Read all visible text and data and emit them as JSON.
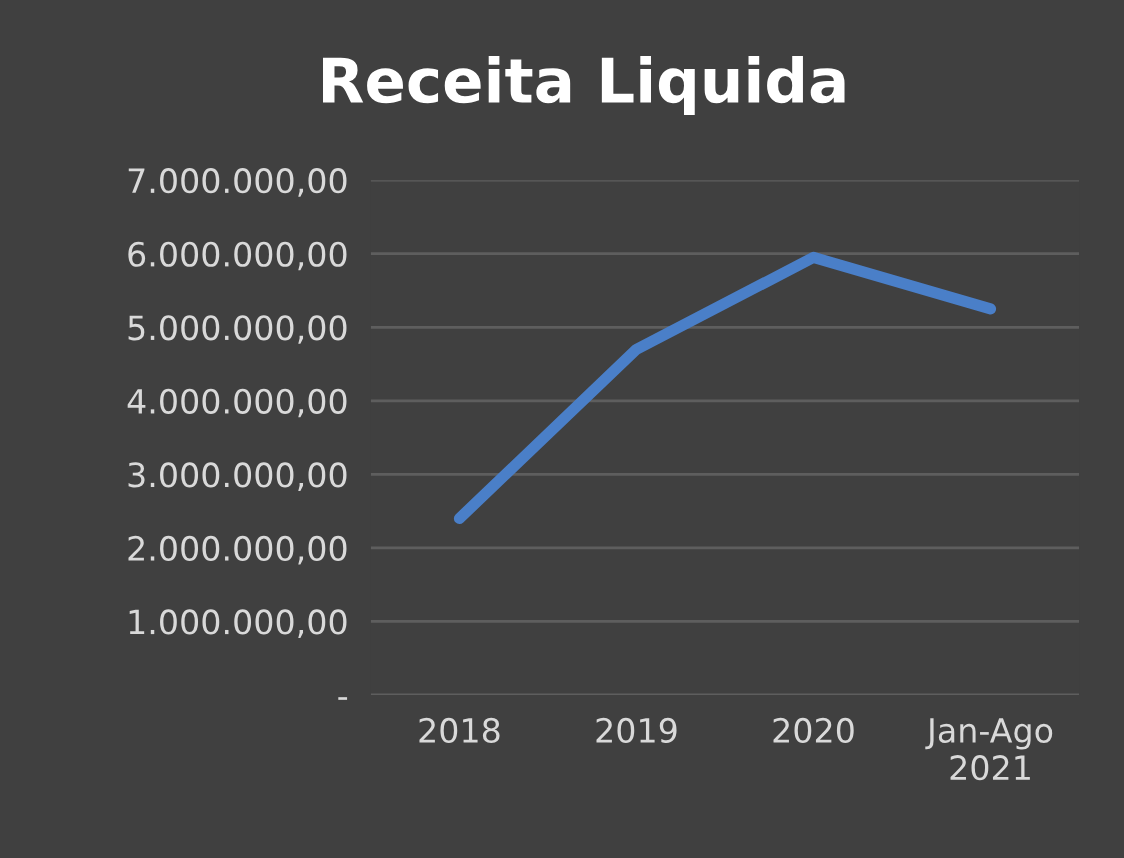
{
  "chart_data": {
    "type": "line",
    "title": "Receita Liquida",
    "categories": [
      "2018",
      "2019",
      "2020",
      "Jan-Ago\n2021"
    ],
    "series": [
      {
        "color": "#4a7fc8",
        "values": [
          2400000,
          4700000,
          5950000,
          5250000
        ]
      }
    ],
    "ylim": [
      0,
      7000000
    ],
    "yticks": [
      {
        "value": 0,
        "label": "-"
      },
      {
        "value": 1000000,
        "label": "1.000.000,00"
      },
      {
        "value": 2000000,
        "label": "2.000.000,00"
      },
      {
        "value": 3000000,
        "label": "3.000.000,00"
      },
      {
        "value": 4000000,
        "label": "4.000.000,00"
      },
      {
        "value": 5000000,
        "label": "5.000.000,00"
      },
      {
        "value": 6000000,
        "label": "6.000.000,00"
      },
      {
        "value": 7000000,
        "label": "7.000.000,00"
      }
    ],
    "grid": "y",
    "marker": "none",
    "line_style": "solid",
    "legend": false
  }
}
